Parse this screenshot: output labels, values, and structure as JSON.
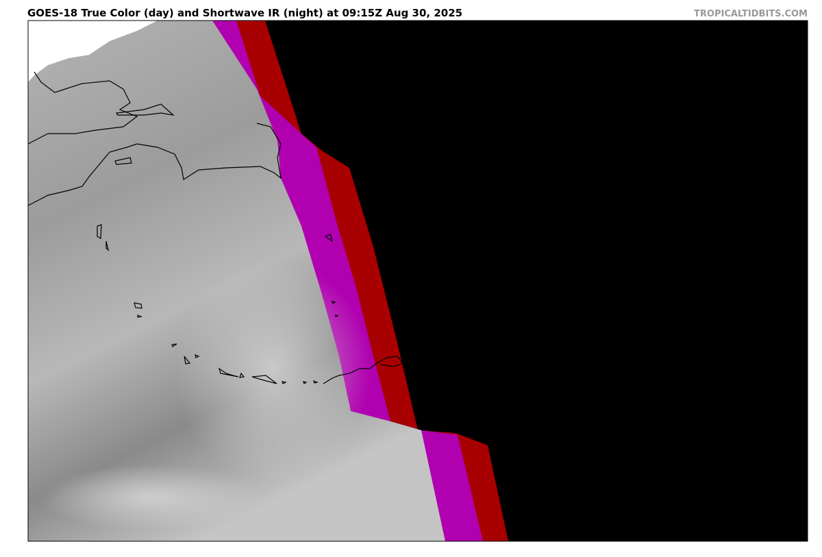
{
  "header": {
    "title": "GOES-18 True Color (day) and Shortwave IR (night) at 09:15Z Aug 30, 2025",
    "watermark": "TROPICALTIDBITS.COM"
  }
}
